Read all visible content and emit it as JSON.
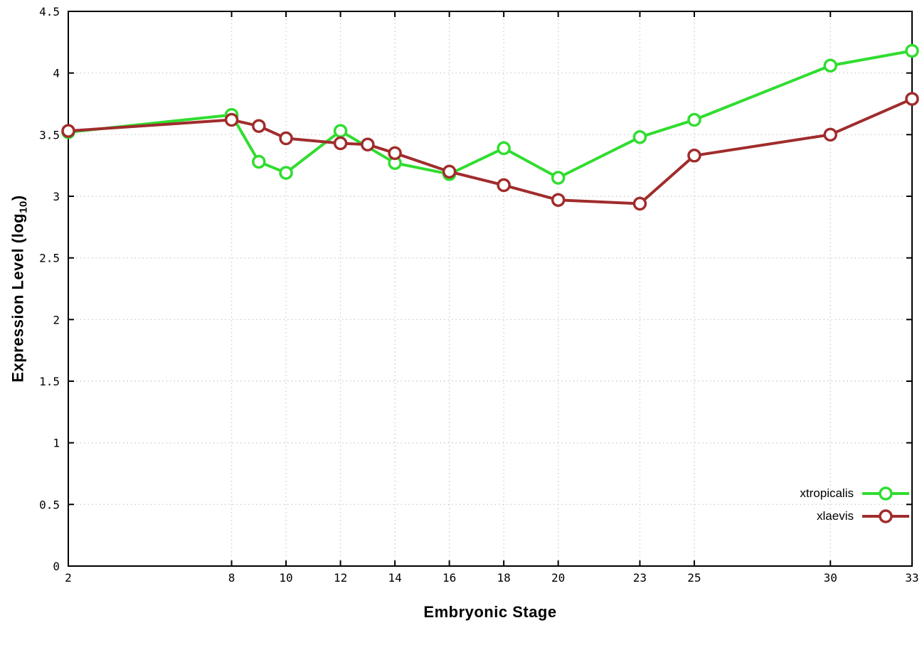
{
  "labels": {
    "xlabel": "Embryonic Stage",
    "ylabel_prefix": "Expression Level (log",
    "ylabel_sub": "10",
    "ylabel_suffix": ")"
  },
  "chart_data": {
    "type": "line",
    "title": "",
    "xlabel": "Embryonic Stage",
    "ylabel": "Expression Level (log10)",
    "xlim": [
      2,
      33
    ],
    "ylim": [
      0,
      4.5
    ],
    "grid": true,
    "legend_position": "bottom-right",
    "x_ticks": [
      2,
      8,
      10,
      12,
      14,
      16,
      18,
      20,
      23,
      25,
      30,
      33
    ],
    "x_tick_labels": [
      "2",
      "8",
      "10",
      "12",
      "14",
      "16",
      "18",
      "20",
      "23",
      "25",
      "30",
      "33"
    ],
    "y_ticks": [
      0,
      0.5,
      1,
      1.5,
      2,
      2.5,
      3,
      3.5,
      4,
      4.5
    ],
    "y_tick_labels": [
      "0",
      "0.5",
      "1",
      "1.5",
      "2",
      "2.5",
      "3",
      "3.5",
      "4",
      "4.5"
    ],
    "series": [
      {
        "name": "xtropicalis",
        "color": "#30dd30",
        "points": [
          [
            2,
            3.52
          ],
          [
            8,
            3.66
          ],
          [
            9,
            3.28
          ],
          [
            10,
            3.19
          ],
          [
            12,
            3.53
          ],
          [
            14,
            3.27
          ],
          [
            16,
            3.18
          ],
          [
            18,
            3.39
          ],
          [
            20,
            3.15
          ],
          [
            23,
            3.48
          ],
          [
            25,
            3.62
          ],
          [
            30,
            4.06
          ],
          [
            33,
            4.18
          ]
        ]
      },
      {
        "name": "xlaevis",
        "color": "#a02c2c",
        "points": [
          [
            2,
            3.53
          ],
          [
            8,
            3.62
          ],
          [
            9,
            3.57
          ],
          [
            10,
            3.47
          ],
          [
            12,
            3.43
          ],
          [
            13,
            3.42
          ],
          [
            14,
            3.35
          ],
          [
            16,
            3.2
          ],
          [
            18,
            3.09
          ],
          [
            20,
            2.97
          ],
          [
            23,
            2.94
          ],
          [
            25,
            3.33
          ],
          [
            30,
            3.5
          ],
          [
            33,
            3.79
          ]
        ]
      }
    ],
    "style": {
      "grid_color": "#cfcfcf",
      "border_color": "#000000",
      "background": "#ffffff",
      "line_width": 4,
      "marker": "open-circle",
      "marker_radius": 8
    }
  }
}
